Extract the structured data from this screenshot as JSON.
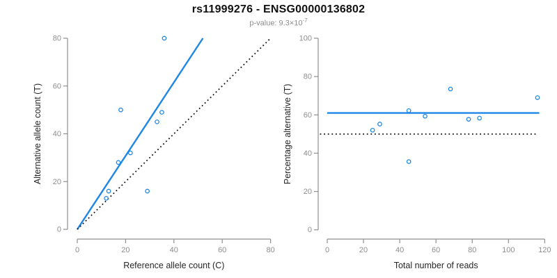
{
  "header": {
    "title": "rs11999276 - ENSG00000136802",
    "subtitle_text": "p-value: 9.3×10",
    "subtitle_exponent": "-7"
  },
  "colors": {
    "accent_blue": "#1E87E5",
    "line_black": "#111111",
    "axis_gray": "#8F8F8F"
  },
  "chart_data": [
    {
      "type": "scatter",
      "panel": "left",
      "xlabel": "Reference allele count (C)",
      "ylabel": "Alternative allele count (T)",
      "xlim": [
        0,
        80
      ],
      "ylim": [
        0,
        80
      ],
      "xticks": [
        0,
        20,
        40,
        60,
        80
      ],
      "yticks": [
        0,
        20,
        40,
        60,
        80
      ],
      "grid": false,
      "legend": "none",
      "points": [
        [
          12,
          13
        ],
        [
          13,
          16
        ],
        [
          17,
          28
        ],
        [
          18,
          50
        ],
        [
          22,
          32
        ],
        [
          29,
          16
        ],
        [
          33,
          45
        ],
        [
          35,
          49
        ],
        [
          36,
          80
        ]
      ],
      "lines": [
        {
          "name": "regression-line",
          "style": "solid",
          "color": "blue",
          "x1": 0,
          "y1": 0,
          "x2": 52,
          "y2": 80
        },
        {
          "name": "identity-line",
          "style": "dotted",
          "color": "black",
          "x1": 0,
          "y1": 0,
          "x2": 80,
          "y2": 80
        }
      ]
    },
    {
      "type": "scatter",
      "panel": "right",
      "xlabel": "Total number of reads",
      "ylabel": "Percentage alternative (T)",
      "xlim": [
        0,
        120
      ],
      "ylim": [
        0,
        100
      ],
      "xticks": [
        0,
        20,
        40,
        60,
        80,
        100,
        120
      ],
      "yticks": [
        0,
        20,
        40,
        60,
        80,
        100
      ],
      "grid": false,
      "legend": "none",
      "points": [
        [
          25,
          52
        ],
        [
          29,
          55.2
        ],
        [
          45,
          62.2
        ],
        [
          45,
          35.6
        ],
        [
          54,
          59.3
        ],
        [
          68,
          73.5
        ],
        [
          78,
          57.7
        ],
        [
          84,
          58.3
        ],
        [
          116,
          69
        ]
      ],
      "lines": [
        {
          "name": "regression-line",
          "style": "solid",
          "color": "blue",
          "x1": 0,
          "y1": 61,
          "x2": 117,
          "y2": 61
        },
        {
          "name": "fifty-percent-line",
          "style": "dotted",
          "color": "black",
          "x1": -4,
          "y1": 50,
          "x2": 115,
          "y2": 50
        }
      ]
    }
  ]
}
